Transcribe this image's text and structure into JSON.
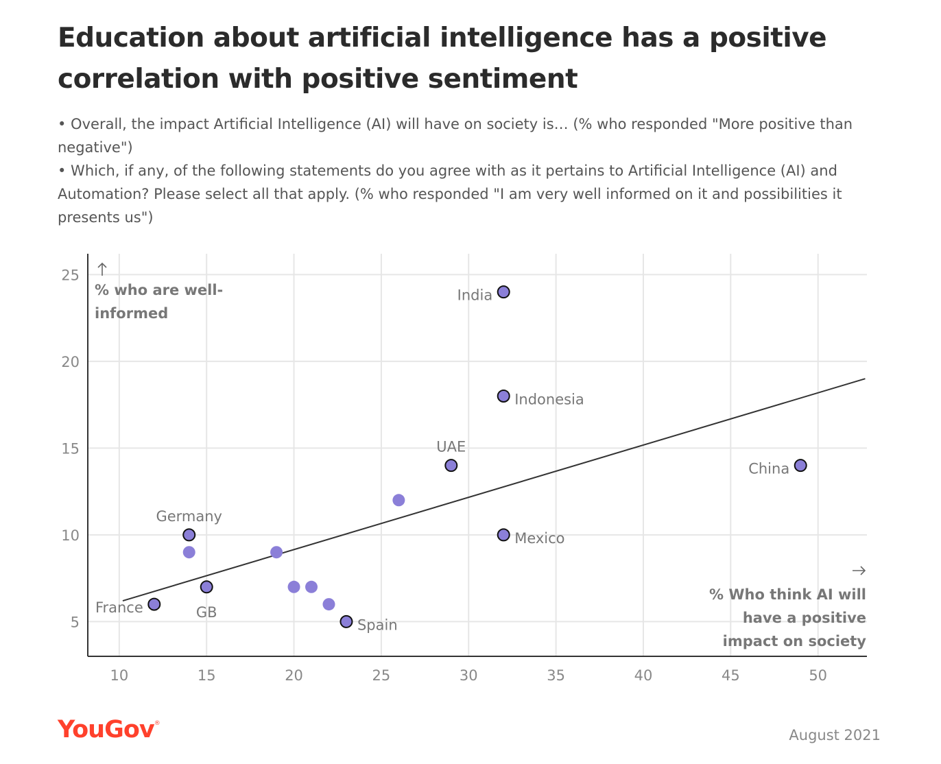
{
  "title": "Education about artificial intelligence has a positive correlation with positive sentiment",
  "subtitle": [
    "• Overall, the impact Artificial Intelligence (AI) will have on society is… (% who responded \"More positive than negative\")",
    "• Which, if any, of the following statements do you agree with as it pertains to Artificial Intelligence (AI) and Automation? Please select all that apply. (% who responded \"I am very well informed on it and possibilities it presents us\")"
  ],
  "brand": "YouGov",
  "date": "August 2021",
  "colors": {
    "point": "#8b7fd8",
    "outline": "#111111",
    "trend": "#333333",
    "grid": "#e6e6e6",
    "brand": "#ff412c"
  },
  "chart_data": {
    "type": "scatter",
    "xlabel": "% Who think AI will have a positive impact on society",
    "ylabel": "% who are well-informed",
    "xlabel_lines": [
      "% Who think AI will",
      "have a positive",
      "impact on society"
    ],
    "ylabel_lines": [
      "% who are well-",
      "informed"
    ],
    "xlim": [
      8.2,
      52.8
    ],
    "ylim": [
      3,
      26.2
    ],
    "xticks": [
      10,
      15,
      20,
      25,
      30,
      35,
      40,
      45,
      50
    ],
    "yticks": [
      5,
      10,
      15,
      20,
      25
    ],
    "grid": true,
    "trendline": [
      {
        "x": 10.2,
        "y": 6.2
      },
      {
        "x": 52.7,
        "y": 19
      }
    ],
    "points": [
      {
        "x": 32,
        "y": 24,
        "label": "India",
        "labelled": true,
        "label_pos": "left"
      },
      {
        "x": 32,
        "y": 18,
        "label": "Indonesia",
        "labelled": true,
        "label_pos": "right"
      },
      {
        "x": 29,
        "y": 14,
        "label": "UAE",
        "labelled": true,
        "label_pos": "above"
      },
      {
        "x": 49,
        "y": 14,
        "label": "China",
        "labelled": true,
        "label_pos": "left"
      },
      {
        "x": 32,
        "y": 10,
        "label": "Mexico",
        "labelled": true,
        "label_pos": "right"
      },
      {
        "x": 14,
        "y": 10,
        "label": "Germany",
        "labelled": true,
        "label_pos": "above"
      },
      {
        "x": 15,
        "y": 7,
        "label": "GB",
        "labelled": true,
        "label_pos": "below"
      },
      {
        "x": 12,
        "y": 6,
        "label": "France",
        "labelled": true,
        "label_pos": "left"
      },
      {
        "x": 23,
        "y": 5,
        "label": "Spain",
        "labelled": true,
        "label_pos": "right"
      },
      {
        "x": 26,
        "y": 12,
        "label": "",
        "labelled": false
      },
      {
        "x": 14,
        "y": 9,
        "label": "",
        "labelled": false
      },
      {
        "x": 19,
        "y": 9,
        "label": "",
        "labelled": false
      },
      {
        "x": 20,
        "y": 7,
        "label": "",
        "labelled": false
      },
      {
        "x": 21,
        "y": 7,
        "label": "",
        "labelled": false
      },
      {
        "x": 22,
        "y": 6,
        "label": "",
        "labelled": false
      }
    ]
  }
}
